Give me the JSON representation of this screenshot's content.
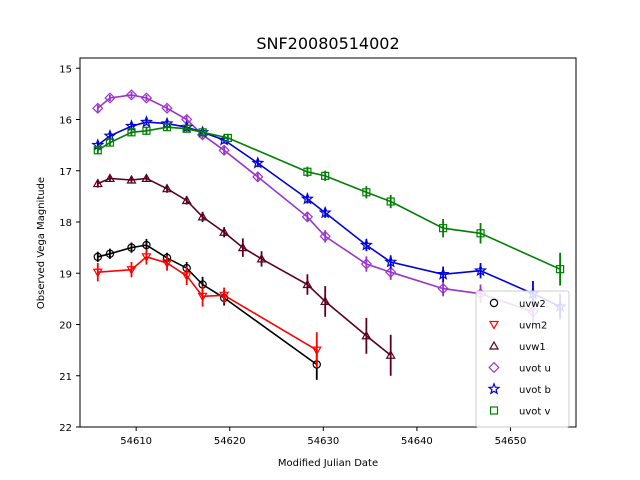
{
  "chart_data": {
    "type": "scatter",
    "title": "SNF20080514002",
    "xlabel": "Modified Julian Date",
    "ylabel": "Observed Vega Magnitude",
    "xlim": [
      54604,
      54657
    ],
    "ylim": [
      22,
      14.8
    ],
    "y_inverted": true,
    "xticks": [
      54610,
      54620,
      54630,
      54640,
      54650
    ],
    "yticks": [
      15,
      16,
      17,
      18,
      19,
      20,
      21,
      22
    ],
    "grid": false,
    "legend_position": "lower-right",
    "series": [
      {
        "name": "uvw2",
        "color": "#000000",
        "marker": "circle",
        "points": [
          {
            "x": 54605.9,
            "y": 18.68,
            "err": 0.1
          },
          {
            "x": 54607.2,
            "y": 18.62,
            "err": 0.1
          },
          {
            "x": 54609.5,
            "y": 18.5,
            "err": 0.1
          },
          {
            "x": 54611.1,
            "y": 18.45,
            "err": 0.12
          },
          {
            "x": 54613.3,
            "y": 18.7,
            "err": 0.1
          },
          {
            "x": 54615.4,
            "y": 18.9,
            "err": 0.12
          },
          {
            "x": 54617.1,
            "y": 19.22,
            "err": 0.15
          },
          {
            "x": 54619.4,
            "y": 19.48,
            "err": 0.15
          },
          {
            "x": 54629.3,
            "y": 20.78,
            "err": 0.3
          }
        ]
      },
      {
        "name": "uvm2",
        "color": "#ff0000",
        "marker": "triangle-down",
        "points": [
          {
            "x": 54605.9,
            "y": 18.98,
            "err": 0.18
          },
          {
            "x": 54609.5,
            "y": 18.93,
            "err": 0.15
          },
          {
            "x": 54611.1,
            "y": 18.68,
            "err": 0.15
          },
          {
            "x": 54613.3,
            "y": 18.8,
            "err": 0.15
          },
          {
            "x": 54615.4,
            "y": 19.05,
            "err": 0.18
          },
          {
            "x": 54617.1,
            "y": 19.45,
            "err": 0.2
          },
          {
            "x": 54619.4,
            "y": 19.43,
            "err": 0.15
          },
          {
            "x": 54629.3,
            "y": 20.5,
            "err": 0.35
          }
        ]
      },
      {
        "name": "uvw1",
        "color": "#5c0020",
        "marker": "triangle-up",
        "points": [
          {
            "x": 54605.9,
            "y": 17.25,
            "err": 0.08
          },
          {
            "x": 54607.2,
            "y": 17.15,
            "err": 0.07
          },
          {
            "x": 54609.5,
            "y": 17.18,
            "err": 0.07
          },
          {
            "x": 54611.1,
            "y": 17.15,
            "err": 0.07
          },
          {
            "x": 54613.3,
            "y": 17.35,
            "err": 0.08
          },
          {
            "x": 54615.4,
            "y": 17.58,
            "err": 0.08
          },
          {
            "x": 54617.1,
            "y": 17.9,
            "err": 0.1
          },
          {
            "x": 54619.4,
            "y": 18.2,
            "err": 0.1
          },
          {
            "x": 54621.4,
            "y": 18.5,
            "err": 0.18
          },
          {
            "x": 54623.4,
            "y": 18.72,
            "err": 0.15
          },
          {
            "x": 54628.3,
            "y": 19.22,
            "err": 0.2
          },
          {
            "x": 54630.2,
            "y": 19.55,
            "err": 0.3
          },
          {
            "x": 54634.6,
            "y": 20.22,
            "err": 0.35
          },
          {
            "x": 54637.2,
            "y": 20.6,
            "err": 0.4
          }
        ]
      },
      {
        "name": "uvot u",
        "color": "#9933cc",
        "marker": "diamond",
        "points": [
          {
            "x": 54605.9,
            "y": 15.78,
            "err": 0.07
          },
          {
            "x": 54607.2,
            "y": 15.58,
            "err": 0.06
          },
          {
            "x": 54609.5,
            "y": 15.52,
            "err": 0.06
          },
          {
            "x": 54611.1,
            "y": 15.58,
            "err": 0.06
          },
          {
            "x": 54613.3,
            "y": 15.78,
            "err": 0.06
          },
          {
            "x": 54615.4,
            "y": 16.0,
            "err": 0.07
          },
          {
            "x": 54617.1,
            "y": 16.3,
            "err": 0.07
          },
          {
            "x": 54619.4,
            "y": 16.6,
            "err": 0.08
          },
          {
            "x": 54623.0,
            "y": 17.12,
            "err": 0.09
          },
          {
            "x": 54628.3,
            "y": 17.9,
            "err": 0.1
          },
          {
            "x": 54630.2,
            "y": 18.28,
            "err": 0.12
          },
          {
            "x": 54634.6,
            "y": 18.82,
            "err": 0.15
          },
          {
            "x": 54637.2,
            "y": 18.98,
            "err": 0.15
          },
          {
            "x": 54642.8,
            "y": 19.3,
            "err": 0.15
          },
          {
            "x": 54646.8,
            "y": 19.4,
            "err": 0.18
          },
          {
            "x": 54652.4,
            "y": 19.75,
            "err": 0.25
          }
        ]
      },
      {
        "name": "uvot b",
        "color": "#0000dd",
        "marker": "star",
        "points": [
          {
            "x": 54605.9,
            "y": 16.5,
            "err": 0.06
          },
          {
            "x": 54607.2,
            "y": 16.32,
            "err": 0.06
          },
          {
            "x": 54609.5,
            "y": 16.13,
            "err": 0.06
          },
          {
            "x": 54611.1,
            "y": 16.05,
            "err": 0.06
          },
          {
            "x": 54613.3,
            "y": 16.08,
            "err": 0.06
          },
          {
            "x": 54615.4,
            "y": 16.15,
            "err": 0.06
          },
          {
            "x": 54617.1,
            "y": 16.25,
            "err": 0.06
          },
          {
            "x": 54619.4,
            "y": 16.4,
            "err": 0.07
          },
          {
            "x": 54623.0,
            "y": 16.85,
            "err": 0.08
          },
          {
            "x": 54628.3,
            "y": 17.55,
            "err": 0.09
          },
          {
            "x": 54630.2,
            "y": 17.82,
            "err": 0.1
          },
          {
            "x": 54634.6,
            "y": 18.45,
            "err": 0.12
          },
          {
            "x": 54637.2,
            "y": 18.78,
            "err": 0.13
          },
          {
            "x": 54642.8,
            "y": 19.02,
            "err": 0.15
          },
          {
            "x": 54646.8,
            "y": 18.95,
            "err": 0.15
          },
          {
            "x": 54652.4,
            "y": 19.4,
            "err": 0.25
          },
          {
            "x": 54655.3,
            "y": 19.65,
            "err": 0.25
          }
        ]
      },
      {
        "name": "uvot v",
        "color": "#008000",
        "marker": "square",
        "points": [
          {
            "x": 54605.9,
            "y": 16.6,
            "err": 0.08
          },
          {
            "x": 54607.2,
            "y": 16.45,
            "err": 0.07
          },
          {
            "x": 54609.5,
            "y": 16.25,
            "err": 0.07
          },
          {
            "x": 54611.1,
            "y": 16.22,
            "err": 0.07
          },
          {
            "x": 54613.3,
            "y": 16.15,
            "err": 0.07
          },
          {
            "x": 54615.4,
            "y": 16.18,
            "err": 0.07
          },
          {
            "x": 54617.1,
            "y": 16.25,
            "err": 0.07
          },
          {
            "x": 54619.8,
            "y": 16.36,
            "err": 0.08
          },
          {
            "x": 54628.3,
            "y": 17.02,
            "err": 0.1
          },
          {
            "x": 54630.2,
            "y": 17.1,
            "err": 0.1
          },
          {
            "x": 54634.6,
            "y": 17.42,
            "err": 0.12
          },
          {
            "x": 54637.2,
            "y": 17.6,
            "err": 0.13
          },
          {
            "x": 54642.8,
            "y": 18.12,
            "err": 0.18
          },
          {
            "x": 54646.8,
            "y": 18.22,
            "err": 0.2
          },
          {
            "x": 54655.3,
            "y": 18.92,
            "err": 0.32
          }
        ]
      }
    ]
  }
}
